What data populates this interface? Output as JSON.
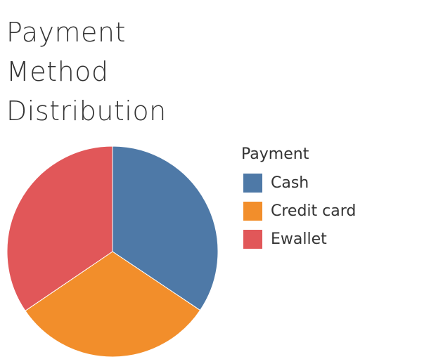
{
  "title_lines": [
    "Payment",
    "Method",
    "Distribution"
  ],
  "legend": {
    "title": "Payment",
    "items": [
      {
        "label": "Cash",
        "color": "#4e79a7"
      },
      {
        "label": "Credit card",
        "color": "#f28e2b"
      },
      {
        "label": "Ewallet",
        "color": "#e15759"
      }
    ]
  },
  "chart_data": {
    "type": "pie",
    "title": "Payment Method Distribution",
    "legend_title": "Payment",
    "legend_position": "right",
    "categories": [
      "Cash",
      "Credit card",
      "Ewallet"
    ],
    "values": [
      34.4,
      31.1,
      34.5
    ],
    "unit": "share of total",
    "colors": [
      "#4e79a7",
      "#f28e2b",
      "#e15759"
    ],
    "start": "12 o'clock, clockwise"
  }
}
